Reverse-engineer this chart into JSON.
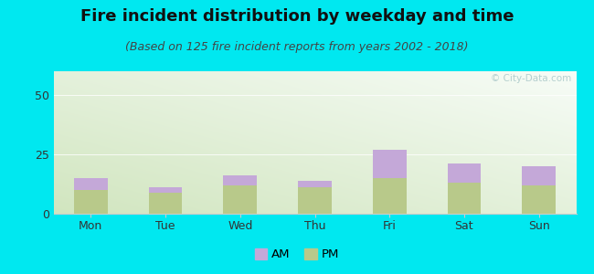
{
  "title": "Fire incident distribution by weekday and time",
  "subtitle": "(Based on 125 fire incident reports from years 2002 - 2018)",
  "categories": [
    "Mon",
    "Tue",
    "Wed",
    "Thu",
    "Fri",
    "Sat",
    "Sun"
  ],
  "am_values": [
    5,
    2,
    4,
    3,
    12,
    8,
    8
  ],
  "pm_values": [
    10,
    9,
    12,
    11,
    15,
    13,
    12
  ],
  "am_color": "#c4a8d8",
  "pm_color": "#b8c98a",
  "background_color": "#00e8f0",
  "ylim": [
    0,
    60
  ],
  "yticks": [
    0,
    25,
    50
  ],
  "watermark": "© City-Data.com",
  "legend_am": "AM",
  "legend_pm": "PM",
  "title_fontsize": 13,
  "subtitle_fontsize": 9,
  "tick_fontsize": 9,
  "bar_width": 0.45
}
